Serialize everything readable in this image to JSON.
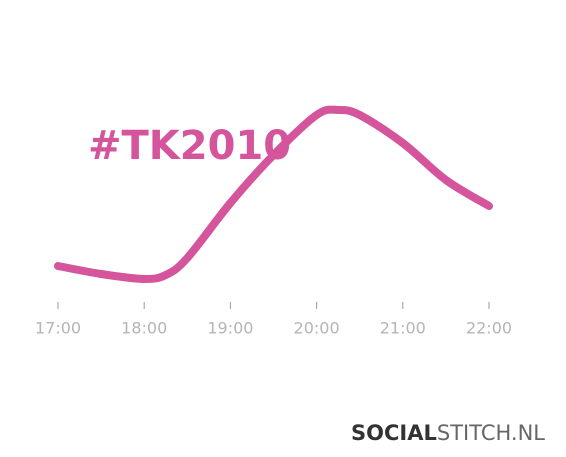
{
  "chart_data": {
    "type": "line",
    "title": "#TK2010",
    "x": [
      17,
      17.5,
      18,
      18.25,
      18.5,
      19,
      19.5,
      20,
      20.25,
      20.5,
      21,
      21.5,
      22
    ],
    "series": [
      {
        "name": "#TK2010",
        "color": "#d4559c",
        "values": [
          34,
          26,
          21,
          25,
          42,
          97,
          145,
          185,
          190,
          185,
          157,
          120,
          94
        ]
      }
    ],
    "xlim": [
      17,
      22
    ],
    "xticks": [
      {
        "value": 17,
        "label": "17:00"
      },
      {
        "value": 18,
        "label": "18:00"
      },
      {
        "value": 19,
        "label": "19:00"
      },
      {
        "value": 20,
        "label": "20:00"
      },
      {
        "value": 21,
        "label": "21:00"
      },
      {
        "value": 22,
        "label": "22:00"
      }
    ]
  },
  "footer": {
    "brand_bold": "SOCIAL",
    "brand_light": "STITCH.NL"
  }
}
